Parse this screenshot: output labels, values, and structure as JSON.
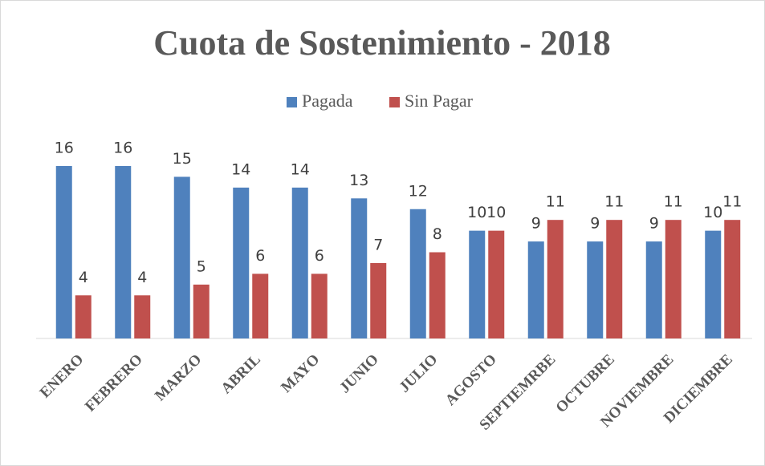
{
  "chart_data": {
    "type": "bar",
    "title": "Cuota de Sostenimiento - 2018",
    "categories": [
      "ENERO",
      "FEBRERO",
      "MARZO",
      "ABRIL",
      "MAYO",
      "JUNIO",
      "JULIO",
      "AGOSTO",
      "SEPTIEMRBE",
      "OCTUBRE",
      "NOVIEMBRE",
      "DICIEMBRE"
    ],
    "series": [
      {
        "name": "Pagada",
        "color": "#4f81bd",
        "values": [
          16,
          16,
          15,
          14,
          14,
          13,
          12,
          10,
          9,
          9,
          9,
          10
        ]
      },
      {
        "name": "Sin Pagar",
        "color": "#c0504d",
        "values": [
          4,
          4,
          5,
          6,
          6,
          7,
          8,
          10,
          11,
          11,
          11,
          11
        ]
      }
    ],
    "legend": "top",
    "grid": false
  }
}
